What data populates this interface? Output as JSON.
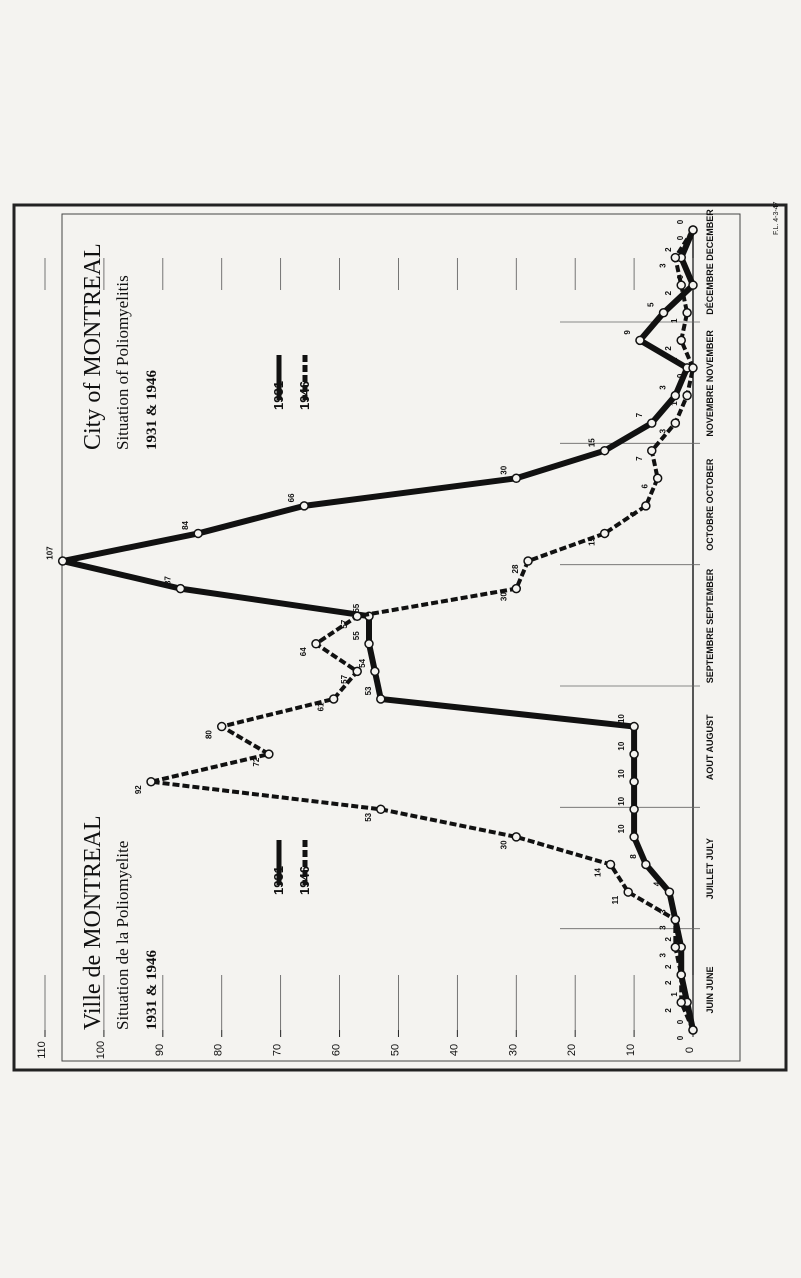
{
  "chart_data": {
    "type": "line",
    "title_fr": [
      "Ville de MONTREAL",
      "Situation de la Poliomyelite",
      "1931 & 1946"
    ],
    "title_en": [
      "City of MONTREAL",
      "Situation of Poliomyelitis",
      "1931 & 1946"
    ],
    "months": [
      "JUIN JUNE",
      "JUILLET JULY",
      "AOUT AUGUST",
      "SEPTEMBRE SEPTEMBER",
      "OCTOBRE OCTOBER",
      "NOVEMBRE NOVEMBER",
      "DÉCEMBRE DECEMBER"
    ],
    "categories": [
      null,
      null,
      null,
      null,
      null,
      null,
      null,
      null,
      null,
      null,
      null,
      null,
      null,
      null,
      null,
      null,
      null,
      null,
      null,
      null,
      null,
      null,
      null,
      null,
      null,
      null,
      null,
      null,
      null,
      null
    ],
    "series": [
      {
        "name": "1931",
        "color": "#111111",
        "dashed": false,
        "values": [
          0,
          1,
          2,
          2,
          3,
          4,
          8,
          10,
          10,
          10,
          10,
          10,
          53,
          54,
          55,
          55,
          87,
          107,
          84,
          66,
          30,
          15,
          7,
          3,
          1,
          9,
          5,
          0,
          2,
          0
        ]
      },
      {
        "name": "1946",
        "color": "#111111",
        "dashed": true,
        "values": [
          0,
          2,
          2,
          3,
          3,
          11,
          14,
          30,
          53,
          92,
          72,
          80,
          61,
          57,
          64,
          57,
          30,
          28,
          15,
          8,
          6,
          7,
          3,
          1,
          0,
          2,
          1,
          2,
          3,
          0
        ]
      }
    ],
    "ylim": [
      0,
      110
    ],
    "yticks": [
      0,
      10,
      20,
      30,
      40,
      50,
      60,
      70,
      80,
      90,
      100,
      110
    ],
    "stamp": "F.L. 4-3-47"
  }
}
